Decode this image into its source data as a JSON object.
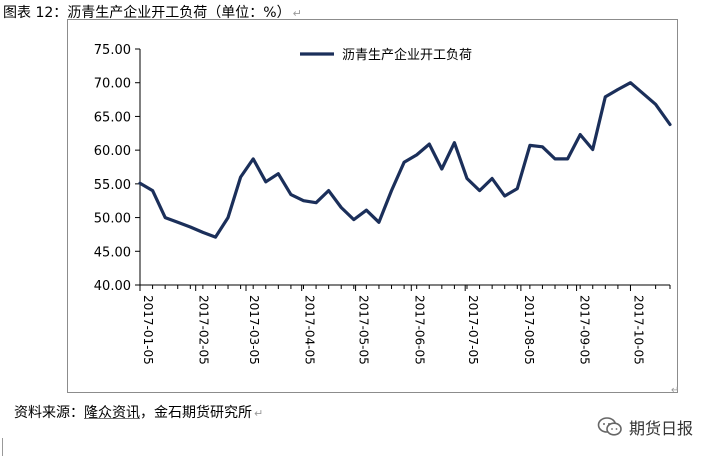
{
  "doc": {
    "title": "图表 12：沥青生产企业开工负荷（单位：%）",
    "title_mark": "↵",
    "source_prefix": "资料来源：",
    "source_linked": "隆众资讯",
    "source_suffix": "，金石期货研究所",
    "source_mark": "↵",
    "axis_end_mark": "↵"
  },
  "watermark": {
    "text": "期货日报",
    "icon": "wechat-chat-bubbles-icon"
  },
  "colors": {
    "series": "#1b2f5a",
    "grid": "#000000",
    "frame": "#8c8c8c"
  },
  "chart_data": {
    "type": "line",
    "title": "",
    "xlabel": "",
    "ylabel": "",
    "ylim": [
      40,
      75
    ],
    "yticks": [
      "40.00",
      "45.00",
      "50.00",
      "55.00",
      "60.00",
      "65.00",
      "70.00",
      "75.00"
    ],
    "xticks": [
      "2017-01-05",
      "2017-02-05",
      "2017-03-05",
      "2017-04-05",
      "2017-05-05",
      "2017-06-05",
      "2017-07-05",
      "2017-08-05",
      "2017-09-05",
      "2017-10-05"
    ],
    "x_range": [
      "2017-01-05",
      "2017-10-27"
    ],
    "grid": false,
    "legend": "top-center",
    "series": [
      {
        "name": "沥青生产企业开工负荷",
        "points": [
          [
            "2017-01-05",
            55.1
          ],
          [
            "2017-01-12",
            54.0
          ],
          [
            "2017-01-19",
            50.0
          ],
          [
            "2017-01-26",
            49.3
          ],
          [
            "2017-02-02",
            48.6
          ],
          [
            "2017-02-09",
            47.8
          ],
          [
            "2017-02-16",
            47.1
          ],
          [
            "2017-02-23",
            50.0
          ],
          [
            "2017-03-02",
            56.0
          ],
          [
            "2017-03-09",
            58.7
          ],
          [
            "2017-03-16",
            55.3
          ],
          [
            "2017-03-23",
            56.5
          ],
          [
            "2017-03-30",
            53.4
          ],
          [
            "2017-04-06",
            52.5
          ],
          [
            "2017-04-13",
            52.2
          ],
          [
            "2017-04-20",
            54.0
          ],
          [
            "2017-04-27",
            51.5
          ],
          [
            "2017-05-04",
            49.7
          ],
          [
            "2017-05-11",
            51.1
          ],
          [
            "2017-05-18",
            49.3
          ],
          [
            "2017-05-25",
            54.0
          ],
          [
            "2017-06-01",
            58.2
          ],
          [
            "2017-06-08",
            59.3
          ],
          [
            "2017-06-15",
            60.9
          ],
          [
            "2017-06-22",
            57.2
          ],
          [
            "2017-06-29",
            61.1
          ],
          [
            "2017-07-06",
            55.8
          ],
          [
            "2017-07-13",
            54.0
          ],
          [
            "2017-07-20",
            55.8
          ],
          [
            "2017-07-27",
            53.2
          ],
          [
            "2017-08-03",
            54.3
          ],
          [
            "2017-08-10",
            60.7
          ],
          [
            "2017-08-17",
            60.5
          ],
          [
            "2017-08-24",
            58.7
          ],
          [
            "2017-08-31",
            58.7
          ],
          [
            "2017-09-07",
            62.3
          ],
          [
            "2017-09-14",
            60.1
          ],
          [
            "2017-09-21",
            67.9
          ],
          [
            "2017-09-28",
            69.0
          ],
          [
            "2017-10-05",
            70.0
          ],
          [
            "2017-10-19",
            66.8
          ],
          [
            "2017-10-27",
            63.8
          ]
        ]
      }
    ]
  }
}
